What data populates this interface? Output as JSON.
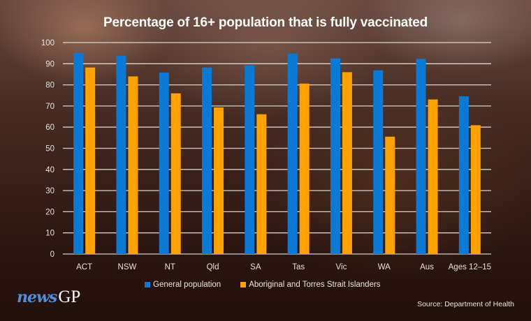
{
  "colors": {
    "general": "#0a7ad6",
    "indigenous": "#ffa200",
    "gridline": "#e8e4e0"
  },
  "branding": {
    "logo_news": "news",
    "logo_gp": "GP",
    "source": "Source: Department of Health"
  },
  "chart_data": {
    "type": "bar",
    "title": "Percentage of 16+ population that is fully vaccinated",
    "xlabel": "",
    "ylabel": "",
    "ylim": [
      0,
      100
    ],
    "yticks": [
      0,
      10,
      20,
      30,
      40,
      50,
      60,
      70,
      80,
      90,
      100
    ],
    "grid": true,
    "legend_position": "bottom",
    "categories": [
      "ACT",
      "NSW",
      "NT",
      "Qld",
      "SA",
      "Tas",
      "Vic",
      "WA",
      "Aus",
      "Ages 12-15"
    ],
    "series": [
      {
        "name": "General population",
        "color": "#0a7ad6",
        "values": [
          95.1,
          93.8,
          85.8,
          88.2,
          89.3,
          94.8,
          92.5,
          86.9,
          92.3,
          74.6
        ]
      },
      {
        "name": "Aboriginal and Torres Strait Islanders",
        "color": "#ffa200",
        "values": [
          88.2,
          84.0,
          76.0,
          69.3,
          66.1,
          80.6,
          86.0,
          55.5,
          73.1,
          60.9
        ]
      }
    ]
  }
}
